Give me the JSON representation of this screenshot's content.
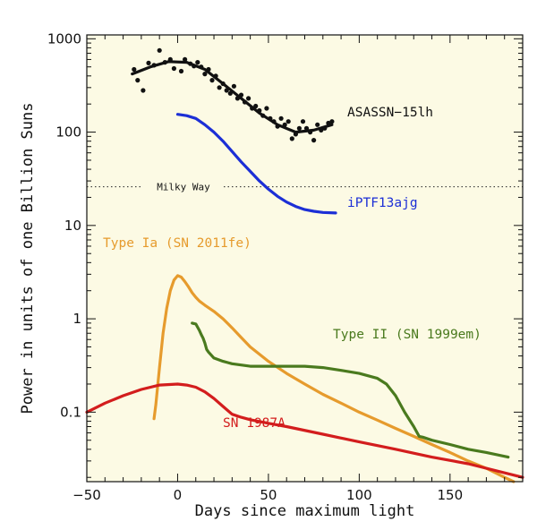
{
  "chart_data": {
    "type": "line",
    "xlabel": "Days since maximum light",
    "ylabel": "Power in units of one Billion Suns",
    "xlim": [
      -50,
      190
    ],
    "ylim": [
      0.018,
      1100
    ],
    "yscale": "log",
    "x_ticks": [
      -50,
      0,
      50,
      100,
      150
    ],
    "y_ticks": [
      {
        "value": 0.1,
        "label": "0.1"
      },
      {
        "value": 1,
        "label": "1"
      },
      {
        "value": 10,
        "label": "10"
      },
      {
        "value": 100,
        "label": "100"
      },
      {
        "value": 1000,
        "label": "1000"
      }
    ],
    "grid": false,
    "background": "#fcfae4",
    "reference_lines": [
      {
        "label": "Milky Way",
        "y": 26,
        "style": "dotted"
      }
    ],
    "series": [
      {
        "name": "ASASSN−15lh",
        "color": "#111111",
        "x": [
          -25,
          -15,
          -5,
          5,
          15,
          25,
          35,
          45,
          55,
          65,
          75,
          85
        ],
        "y": [
          420,
          500,
          570,
          560,
          470,
          330,
          230,
          160,
          120,
          100,
          105,
          120
        ],
        "scatter": {
          "x": [
            -24,
            -22,
            -19,
            -16,
            -13,
            -10,
            -7,
            -4,
            -2,
            2,
            4,
            7,
            9,
            11,
            13,
            15,
            17,
            19,
            21,
            23,
            25,
            27,
            29,
            31,
            33,
            35,
            37,
            39,
            41,
            43,
            45,
            47,
            49,
            51,
            53,
            55,
            57,
            59,
            61,
            63,
            65,
            67,
            69,
            71,
            73,
            75,
            77,
            79,
            81,
            83,
            85
          ],
          "y": [
            470,
            360,
            280,
            550,
            520,
            750,
            560,
            600,
            480,
            450,
            600,
            540,
            510,
            560,
            500,
            420,
            470,
            360,
            400,
            300,
            330,
            280,
            260,
            310,
            230,
            250,
            210,
            230,
            180,
            190,
            170,
            150,
            180,
            140,
            130,
            115,
            140,
            120,
            130,
            85,
            95,
            110,
            130,
            110,
            100,
            82,
            120,
            105,
            110,
            125,
            130
          ]
        }
      },
      {
        "name": "iPTF13ajg",
        "color": "#1c2fd6",
        "x": [
          0,
          5,
          10,
          15,
          20,
          25,
          30,
          35,
          40,
          45,
          50,
          55,
          60,
          65,
          70,
          75,
          80,
          87
        ],
        "y": [
          155,
          150,
          140,
          120,
          100,
          80,
          62,
          48,
          38,
          30,
          24.5,
          20.5,
          17.8,
          16,
          14.8,
          14.2,
          13.8,
          13.6
        ]
      },
      {
        "name": "Type Ia (SN 2011fe)",
        "color": "#e69b2d",
        "x": [
          -13,
          -12,
          -10,
          -8,
          -6,
          -4,
          -2,
          0,
          2,
          4,
          6,
          8,
          10,
          12,
          15,
          20,
          25,
          30,
          35,
          40,
          50,
          60,
          70,
          80,
          90,
          100,
          110,
          120,
          130,
          140,
          150,
          160,
          170,
          180,
          185
        ],
        "y": [
          0.085,
          0.12,
          0.3,
          0.7,
          1.3,
          2.0,
          2.6,
          2.9,
          2.8,
          2.5,
          2.2,
          1.9,
          1.7,
          1.55,
          1.4,
          1.2,
          1.0,
          0.8,
          0.63,
          0.5,
          0.35,
          0.26,
          0.2,
          0.155,
          0.125,
          0.1,
          0.082,
          0.067,
          0.055,
          0.045,
          0.037,
          0.03,
          0.025,
          0.02,
          0.018
        ]
      },
      {
        "name": "Type II (SN 1999em)",
        "color": "#4a7a1e",
        "x": [
          8,
          10,
          12,
          13,
          14,
          15,
          16,
          17,
          20,
          25,
          30,
          40,
          50,
          60,
          70,
          80,
          90,
          100,
          110,
          115,
          120,
          125,
          130,
          133,
          135,
          140,
          150,
          160,
          170,
          182
        ],
        "y": [
          0.9,
          0.88,
          0.75,
          0.68,
          0.62,
          0.55,
          0.47,
          0.44,
          0.38,
          0.35,
          0.33,
          0.31,
          0.31,
          0.31,
          0.31,
          0.3,
          0.28,
          0.26,
          0.23,
          0.2,
          0.15,
          0.1,
          0.07,
          0.055,
          0.054,
          0.05,
          0.045,
          0.04,
          0.037,
          0.033
        ]
      },
      {
        "name": "SN 1987A",
        "color": "#d31d1d",
        "x": [
          -50,
          -40,
          -30,
          -20,
          -10,
          0,
          5,
          10,
          15,
          20,
          25,
          30,
          35,
          40,
          50,
          60,
          80,
          100,
          120,
          140,
          160,
          190
        ],
        "y": [
          0.1,
          0.125,
          0.15,
          0.175,
          0.195,
          0.2,
          0.195,
          0.185,
          0.165,
          0.14,
          0.115,
          0.095,
          0.088,
          0.083,
          0.076,
          0.07,
          0.058,
          0.048,
          0.04,
          0.033,
          0.028,
          0.02
        ]
      }
    ]
  }
}
